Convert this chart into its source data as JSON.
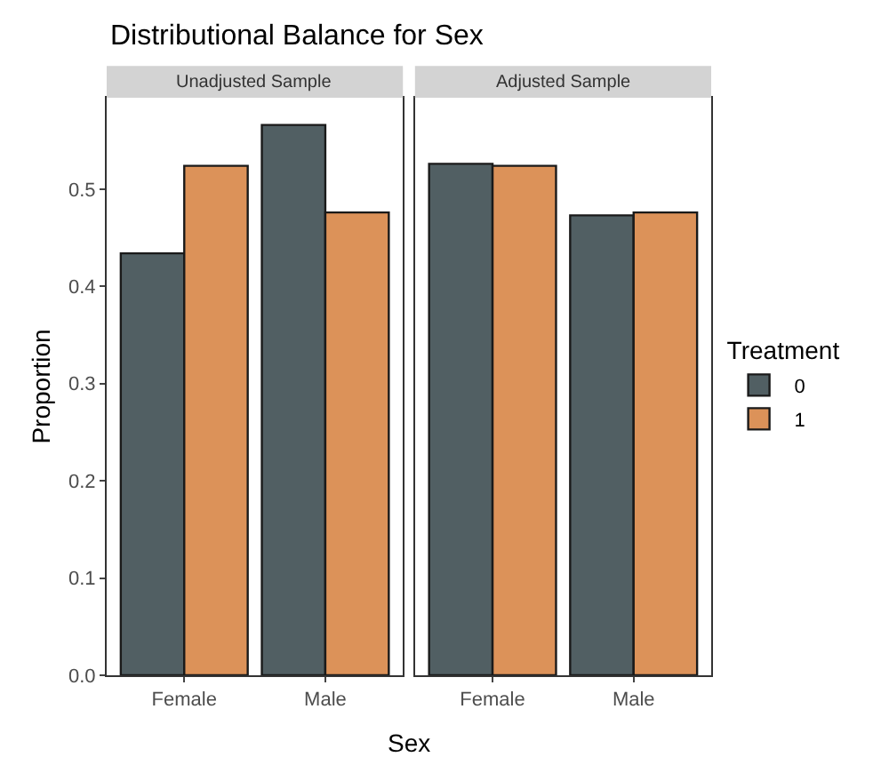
{
  "chart_data": [
    {
      "type": "bar",
      "title": "Distributional Balance for Sex",
      "subtitle": "Unadjusted Sample",
      "xlabel": "Sex",
      "ylabel": "Proportion",
      "categories": [
        "Female",
        "Male"
      ],
      "series": [
        {
          "name": "0",
          "color": "#515f63",
          "values": [
            0.434,
            0.566
          ]
        },
        {
          "name": "1",
          "color": "#dc9259",
          "values": [
            0.524,
            0.476
          ]
        }
      ],
      "ylim": [
        0,
        0.594
      ],
      "yticks": [
        {
          "value": 0,
          "label": "0.0"
        },
        0.1,
        0.2,
        0.3,
        0.4,
        0.5
      ],
      "legend": "right"
    },
    {
      "type": "bar",
      "subtitle": "Adjusted Sample",
      "legend_title": "Treatment",
      "categories": [
        "Female",
        "Male"
      ],
      "series": [
        {
          "name": "0",
          "color": "#515f63",
          "values": [
            0.526,
            0.473
          ]
        },
        {
          "name": "1",
          "color": "#dc9259",
          "values": [
            0.524,
            0.476
          ]
        }
      ],
      "ylim": [
        0,
        0.594
      ],
      "yticks": [
        0,
        0.1,
        0.2,
        0.3,
        0.4,
        0.5
      ],
      "tick_labels": "x",
      "legend": "right"
    }
  ]
}
